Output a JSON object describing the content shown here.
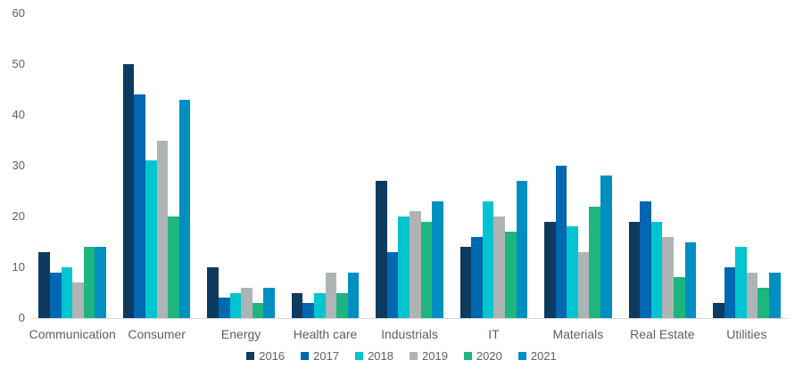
{
  "chart_data": {
    "type": "bar",
    "title": "",
    "xlabel": "",
    "ylabel": "",
    "categories": [
      "Communication",
      "Consumer",
      "Energy",
      "Health care",
      "Industrials",
      "IT",
      "Materials",
      "Real Estate",
      "Utilities"
    ],
    "series": [
      {
        "name": "2016",
        "color": "#0d3b60",
        "values": [
          13,
          50,
          10,
          5,
          27,
          14,
          19,
          19,
          3
        ]
      },
      {
        "name": "2017",
        "color": "#0067b1",
        "values": [
          9,
          44,
          4,
          3,
          13,
          16,
          30,
          23,
          10
        ]
      },
      {
        "name": "2018",
        "color": "#00c4cf",
        "values": [
          10,
          31,
          5,
          5,
          20,
          23,
          18,
          19,
          14
        ]
      },
      {
        "name": "2019",
        "color": "#aeb4b6",
        "values": [
          7,
          35,
          6,
          9,
          21,
          20,
          13,
          16,
          9
        ]
      },
      {
        "name": "2020",
        "color": "#1eb57e",
        "values": [
          14,
          20,
          3,
          5,
          19,
          17,
          22,
          8,
          6
        ]
      },
      {
        "name": "2021",
        "color": "#008fc1",
        "values": [
          14,
          43,
          6,
          9,
          23,
          27,
          28,
          15,
          9
        ]
      }
    ],
    "ylim": [
      0,
      60
    ],
    "yticks": [
      0,
      10,
      20,
      30,
      40,
      50,
      60
    ],
    "grid": false,
    "legend_position": "bottom",
    "text_color": "#5a6166",
    "axis_line_color": "#dcdcdc"
  }
}
